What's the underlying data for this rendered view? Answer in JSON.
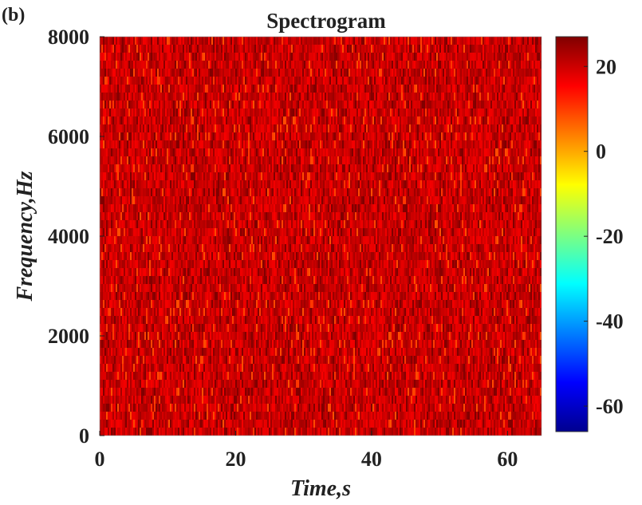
{
  "panel_label": "(b)",
  "chart_data": {
    "type": "heatmap",
    "title": "Spectrogram",
    "xlabel": "Time,s",
    "ylabel": "Frequency,Hz",
    "xlim": [
      0,
      65
    ],
    "ylim": [
      0,
      8000
    ],
    "x_ticks": [
      0,
      20,
      40,
      60
    ],
    "y_ticks": [
      0,
      2000,
      4000,
      6000,
      8000
    ],
    "x_tick_labels": [
      "0",
      "20",
      "40",
      "60"
    ],
    "y_tick_labels": [
      "0",
      "2000",
      "4000",
      "6000",
      "8000"
    ],
    "colorbar": {
      "colormap": "jet",
      "range": [
        -66,
        27
      ],
      "ticks": [
        -60,
        -40,
        -20,
        0,
        20
      ],
      "tick_labels": [
        "-60",
        "-40",
        "-20",
        "0",
        "20"
      ]
    },
    "value_distribution": {
      "typical_range": [
        10,
        27
      ],
      "dominant_color_note": "values concentrated roughly between 12 and 25 dB across all time and frequency"
    },
    "grid": false
  }
}
